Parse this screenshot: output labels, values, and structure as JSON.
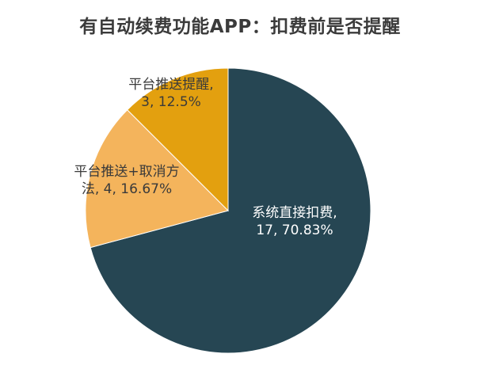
{
  "chart_data": {
    "type": "pie",
    "title": "有自动续费功能APP：扣费前是否提醒",
    "slices": [
      {
        "label": "系统直接扣费",
        "value": 17,
        "percent": "70.83%",
        "color": "#264653",
        "text_color": "#ffffff",
        "label_lines": [
          "系统直接扣费,",
          "17, 70.83%"
        ]
      },
      {
        "label": "平台推送+取消方法",
        "value": 4,
        "percent": "16.67%",
        "color": "#f4b45c",
        "text_color": "#3a3a3a",
        "label_lines": [
          "平台推送+取消方",
          "法, 4, 16.67%"
        ]
      },
      {
        "label": "平台推送提醒",
        "value": 3,
        "percent": "12.5%",
        "color": "#e3a00f",
        "text_color": "#3a3a3a",
        "label_lines": [
          "平台推送提醒,",
          "3, 12.5%"
        ]
      }
    ]
  }
}
